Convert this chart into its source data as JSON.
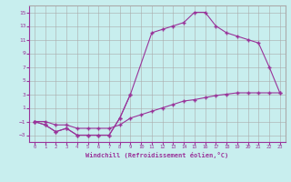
{
  "xlabel": "Windchill (Refroidissement éolien,°C)",
  "background_color": "#c8eeee",
  "grid_color": "#aaaaaa",
  "line_color": "#993399",
  "ylim": [
    -4,
    16
  ],
  "yticks": [
    -3,
    -1,
    1,
    3,
    5,
    7,
    9,
    11,
    13,
    15
  ],
  "xticks": [
    0,
    1,
    2,
    3,
    4,
    5,
    6,
    7,
    8,
    9,
    10,
    11,
    12,
    13,
    14,
    15,
    16,
    17,
    18,
    19,
    20,
    21,
    22,
    23
  ],
  "line1_x": [
    0,
    1,
    2,
    3,
    4,
    5,
    6,
    7,
    8,
    9
  ],
  "line1_y": [
    -1,
    -1.5,
    -2.5,
    -2,
    -3,
    -3,
    -3,
    -3,
    -0.5,
    3
  ],
  "line2_x": [
    0,
    1,
    2,
    3,
    4,
    5,
    6,
    7,
    8,
    9,
    11,
    12,
    13,
    14,
    15,
    16,
    17,
    18,
    19,
    20,
    21,
    22,
    23
  ],
  "line2_y": [
    -1,
    -1.5,
    -2.5,
    -2,
    -3,
    -3,
    -3,
    -3,
    -0.5,
    3,
    12,
    12.5,
    13,
    13.5,
    15,
    15,
    13,
    12,
    11.5,
    11,
    10.5,
    7,
    3.2
  ],
  "line3_x": [
    0,
    1,
    2,
    3,
    4,
    5,
    6,
    7,
    8,
    9,
    10,
    11,
    12,
    13,
    14,
    15,
    16,
    17,
    18,
    19,
    20,
    21,
    22,
    23
  ],
  "line3_y": [
    -1,
    -1,
    -1.5,
    -1.5,
    -2,
    -2,
    -2,
    -2,
    -1.5,
    -0.5,
    0,
    0.5,
    1,
    1.5,
    2,
    2.2,
    2.5,
    2.8,
    3,
    3.2,
    3.2,
    3.2,
    3.2,
    3.2
  ]
}
